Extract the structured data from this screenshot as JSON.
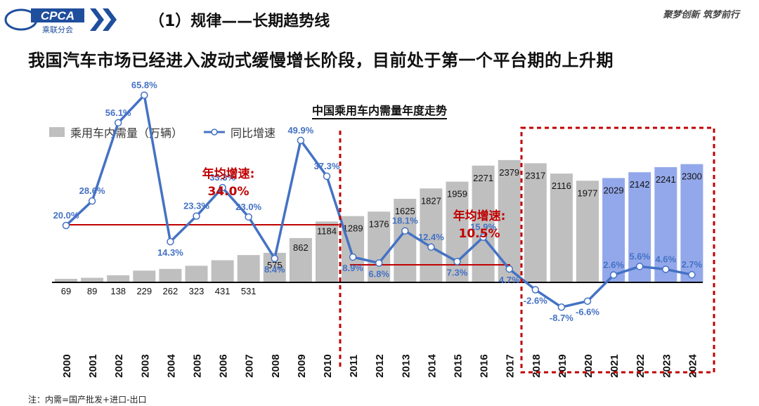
{
  "header": {
    "logo_text": "CPCA",
    "logo_sub": "乘联分会",
    "title": "（1）规律——长期趋势线",
    "slogan": "聚梦创新 筑梦前行"
  },
  "subtitle": "我国汽车市场已经进入波动式缓慢增长阶段，目前处于第一个平台期的上升期",
  "footnote": "注：内需=国产批发+进口-出口",
  "colors": {
    "bar_gray": "#bfbfbf",
    "bar_blue": "#93a8ea",
    "line_blue": "#4472c4",
    "label_blue": "#4472c4",
    "annotation_red": "#c00000"
  },
  "chart_data": {
    "type": "bar",
    "title": "中国乘用车内需量年度走势",
    "legend": [
      "乘用车内需量（万辆）",
      "同比增速"
    ],
    "categories": [
      "2000",
      "2001",
      "2002",
      "2003",
      "2004",
      "2005",
      "2006",
      "2007",
      "2008",
      "2009",
      "2010",
      "2011",
      "2012",
      "2013",
      "2014",
      "2015",
      "2016",
      "2017",
      "2018",
      "2019",
      "2020",
      "2021",
      "2022",
      "2023",
      "2024"
    ],
    "series": [
      {
        "name": "乘用车内需量（万辆）",
        "values": [
          69,
          89,
          138,
          229,
          262,
          323,
          431,
          531,
          575,
          862,
          1184,
          1289,
          1376,
          1625,
          1827,
          1959,
          2271,
          2379,
          2317,
          2116,
          1977,
          2029,
          2142,
          2241,
          2300
        ]
      },
      {
        "name": "同比增速",
        "values": [
          20.0,
          28.6,
          56.1,
          65.8,
          14.3,
          23.3,
          33.3,
          23.0,
          8.4,
          49.9,
          37.3,
          8.9,
          6.8,
          18.1,
          12.4,
          7.3,
          15.9,
          4.7,
          -2.6,
          -8.7,
          -6.6,
          2.6,
          5.6,
          4.6,
          2.7
        ]
      }
    ],
    "value_labels": [
      "69",
      "89",
      "138",
      "229",
      "262",
      "323",
      "431",
      "531",
      "575",
      "862",
      "1184",
      "1289",
      "1376",
      "1625",
      "1827",
      "1959",
      "2271",
      "2379",
      "2317",
      "2116",
      "1977",
      "2029",
      "2142",
      "2241",
      "2300"
    ],
    "growth_labels": [
      "20.0%",
      "28.6%",
      "56.1%",
      "65.8%",
      "14.3%",
      "23.3%",
      "33.3%",
      "23.0%",
      "8.4%",
      "49.9%",
      "37.3%",
      "8.9%",
      "6.8%",
      "18.1%",
      "12.4%",
      "7.3%",
      "15.9%",
      "4.7%",
      "-2.6%",
      "-8.7%",
      "-6.6%",
      "2.6%",
      "5.6%",
      "4.6%",
      "2.7%"
    ],
    "annotations": [
      {
        "text_line1": "年均增速:",
        "text_line2": "34.0%"
      },
      {
        "text_line1": "年均增速:",
        "text_line2": "10.5%"
      }
    ]
  }
}
